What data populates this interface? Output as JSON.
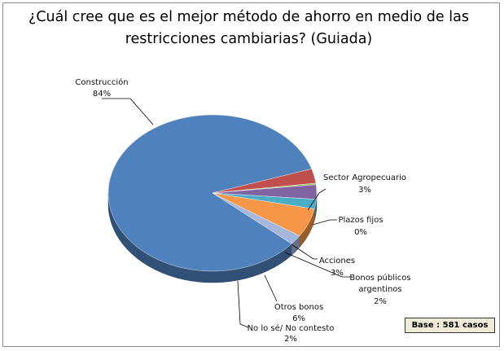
{
  "chart_data": {
    "type": "pie",
    "title": "¿Cuál cree que es el mejor método de ahorro en medio de las restricciones cambiarias? (Guiada)",
    "title_line1": "¿Cuál cree que es el mejor método de ahorro en medio de las",
    "title_line2": "restricciones cambiarias? (Guiada)",
    "slices": [
      {
        "label": "Construcción",
        "value": 84,
        "pct": "84%",
        "color": "#4f81bd"
      },
      {
        "label": "Sector Agropecuario",
        "value": 3,
        "pct": "3%",
        "color": "#c0504d"
      },
      {
        "label": "Plazos fijos",
        "value": 0.3,
        "pct": "0%",
        "color": "#9bbb59"
      },
      {
        "label": "Acciones",
        "value": 3,
        "pct": "3%",
        "color": "#8064a2"
      },
      {
        "label": "Bonos públicos argentinos",
        "value": 2,
        "pct": "2%",
        "color": "#4bacc6"
      },
      {
        "label": "Otros bonos",
        "value": 6,
        "pct": "6%",
        "color": "#f79646"
      },
      {
        "label": "No lo sé/ No contesto",
        "value": 2,
        "pct": "2%",
        "color": "#a5b7dd"
      }
    ],
    "base_note": "Base : 581 casos"
  },
  "labels": {
    "construccion_name": "Construcción",
    "construccion_pct": "84%",
    "agro_name": "Sector Agropecuario",
    "agro_pct": "3%",
    "plazos_name": "Plazos fijos",
    "plazos_pct": "0%",
    "acciones_name": "Acciones",
    "acciones_pct": "3%",
    "bonos_pub_name1": "Bonos públicos",
    "bonos_pub_name2": "argentinos",
    "bonos_pub_pct": "2%",
    "otros_name": "Otros bonos",
    "otros_pct": "6%",
    "nolose_name": "No lo sé/ No contesto",
    "nolose_pct": "2%"
  }
}
